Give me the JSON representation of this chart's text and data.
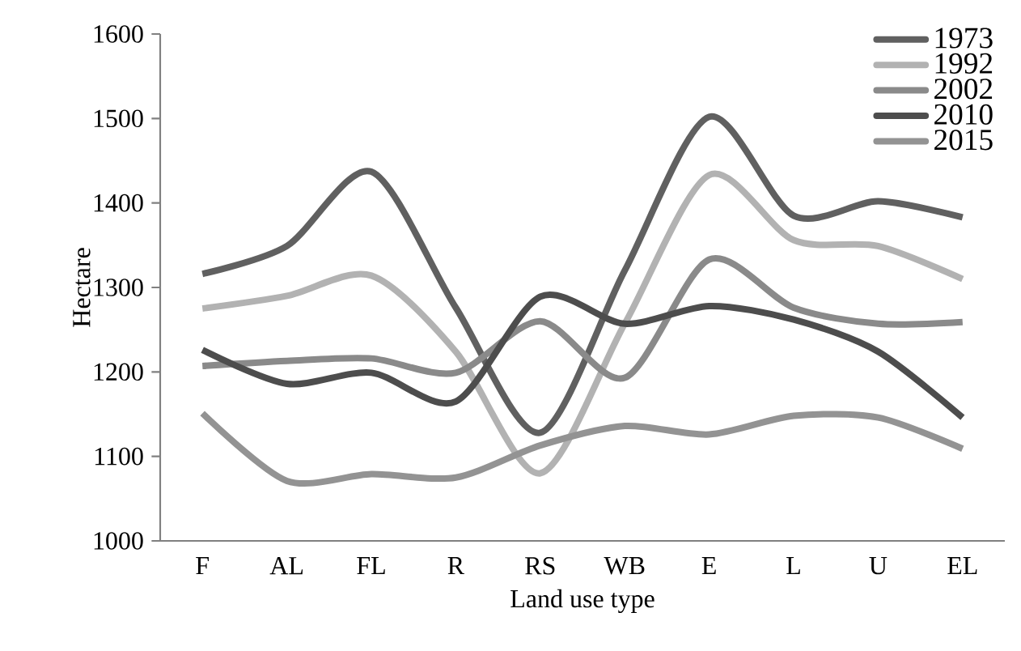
{
  "chart_data": {
    "type": "line",
    "xlabel": "Land use type",
    "ylabel": "Hectare",
    "categories": [
      "F",
      "AL",
      "FL",
      "R",
      "RS",
      "WB",
      "E",
      "L",
      "U",
      "EL"
    ],
    "ylim": [
      1000,
      1600
    ],
    "yticks": [
      1000,
      1100,
      1200,
      1300,
      1400,
      1500,
      1600
    ],
    "legend": "top right",
    "grid": false,
    "marker": "none",
    "line_style": "solid",
    "series": [
      {
        "name": "1973",
        "color": "#606060",
        "values": [
          1316,
          1349,
          1437,
          1276,
          1128,
          1320,
          1502,
          1385,
          1402,
          1383
        ]
      },
      {
        "name": "1992",
        "color": "#b2b2b2",
        "values": [
          1275,
          1290,
          1314,
          1224,
          1080,
          1257,
          1433,
          1356,
          1349,
          1310
        ]
      },
      {
        "name": "2002",
        "color": "#8a8a8a",
        "values": [
          1207,
          1213,
          1216,
          1199,
          1260,
          1193,
          1333,
          1276,
          1257,
          1259
        ]
      },
      {
        "name": "2010",
        "color": "#4d4d4d",
        "values": [
          1226,
          1186,
          1199,
          1165,
          1289,
          1257,
          1278,
          1262,
          1224,
          1146
        ]
      },
      {
        "name": "2015",
        "color": "#939393",
        "values": [
          1151,
          1071,
          1079,
          1075,
          1113,
          1136,
          1126,
          1148,
          1146,
          1109
        ]
      }
    ]
  }
}
